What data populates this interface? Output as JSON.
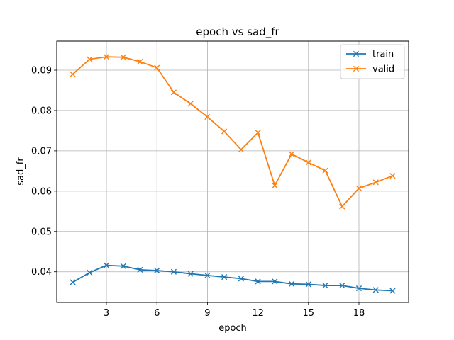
{
  "chart_data": {
    "type": "line",
    "title": "epoch vs sad_fr",
    "xlabel": "epoch",
    "ylabel": "sad_fr",
    "x": [
      1,
      2,
      3,
      4,
      5,
      6,
      7,
      8,
      9,
      10,
      11,
      12,
      13,
      14,
      15,
      16,
      17,
      18,
      19,
      20
    ],
    "xticks": [
      3,
      6,
      9,
      12,
      15,
      18
    ],
    "yticks": [
      0.04,
      0.05,
      0.06,
      0.07,
      0.08,
      0.09
    ],
    "xlim": [
      0.05,
      20.95
    ],
    "ylim": [
      0.0324,
      0.0972
    ],
    "grid": true,
    "legend_position": "top-right",
    "marker": "x",
    "series": [
      {
        "name": "train",
        "color": "#1f77b4",
        "values": [
          0.0374,
          0.0398,
          0.0416,
          0.0414,
          0.0405,
          0.0403,
          0.04,
          0.0395,
          0.0391,
          0.0387,
          0.0383,
          0.0376,
          0.0376,
          0.037,
          0.0369,
          0.0366,
          0.0366,
          0.0359,
          0.0355,
          0.0353
        ]
      },
      {
        "name": "valid",
        "color": "#ff7f0e",
        "values": [
          0.089,
          0.0927,
          0.0933,
          0.0932,
          0.0921,
          0.0906,
          0.0845,
          0.0817,
          0.0784,
          0.0748,
          0.0703,
          0.0745,
          0.0614,
          0.0692,
          0.0671,
          0.0651,
          0.0562,
          0.0607,
          0.0622,
          0.0638
        ]
      }
    ]
  }
}
